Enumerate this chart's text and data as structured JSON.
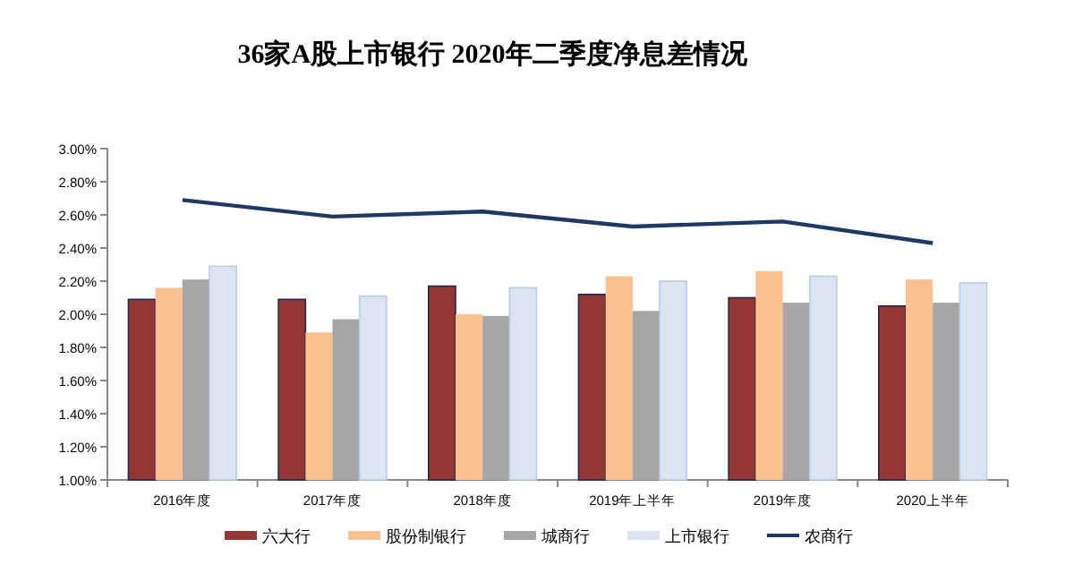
{
  "chart_data": {
    "type": "bar",
    "title": "36家A股上市银行 2020年二季度净息差情况",
    "categories": [
      "2016年度",
      "2017年度",
      "2018年度",
      "2019年上半年",
      "2019年度",
      "2020上半年"
    ],
    "series": [
      {
        "name": "六大行",
        "color": "#943634",
        "values": [
          2.09,
          2.09,
          2.17,
          2.12,
          2.1,
          2.05
        ]
      },
      {
        "name": "股份制银行",
        "color": "#fac090",
        "values": [
          2.16,
          1.89,
          2.0,
          2.23,
          2.26,
          2.21
        ]
      },
      {
        "name": "城商行",
        "color": "#a6a6a6",
        "values": [
          2.21,
          1.97,
          1.99,
          2.02,
          2.07,
          2.07
        ]
      },
      {
        "name": "上市银行",
        "color": "#dbe5f1",
        "values": [
          2.29,
          2.11,
          2.16,
          2.2,
          2.23,
          2.19
        ]
      },
      {
        "name": "农商行",
        "type": "line",
        "color": "#1f3864",
        "values": [
          2.69,
          2.59,
          2.62,
          2.53,
          2.56,
          2.43
        ]
      }
    ],
    "ylim": [
      1.0,
      3.0
    ],
    "yticks": [
      {
        "value": 1.0,
        "label": "1.00%"
      },
      {
        "value": 1.2,
        "label": "1.20%"
      },
      {
        "value": 1.4,
        "label": "1.40%"
      },
      {
        "value": 1.6,
        "label": "1.60%"
      },
      {
        "value": 1.8,
        "label": "1.80%"
      },
      {
        "value": 2.0,
        "label": "2.00%"
      },
      {
        "value": 2.2,
        "label": "2.20%"
      },
      {
        "value": 2.4,
        "label": "2.40%"
      },
      {
        "value": 2.6,
        "label": "2.60%"
      },
      {
        "value": 2.8,
        "label": "2.80%"
      },
      {
        "value": 3.0,
        "label": "3.00%"
      }
    ],
    "legend": "bottom"
  }
}
